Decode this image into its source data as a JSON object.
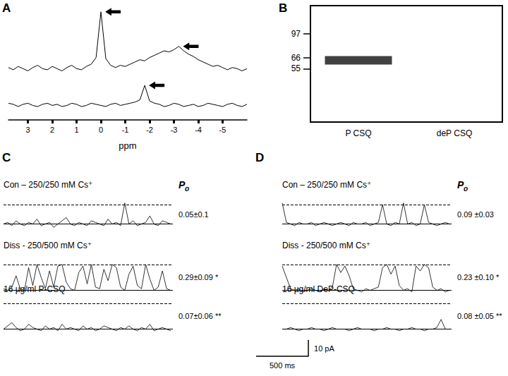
{
  "chart_data": [
    {
      "panel": "A",
      "type": "line",
      "x_label": "ppm",
      "x": [
        3.8,
        3.6,
        3.4,
        3.2,
        3.0,
        2.8,
        2.6,
        2.4,
        2.2,
        2.0,
        1.8,
        1.6,
        1.4,
        1.2,
        1.0,
        0.8,
        0.6,
        0.4,
        0.2,
        0.0,
        -0.2,
        -0.4,
        -0.6,
        -0.8,
        -1.0,
        -1.2,
        -1.4,
        -1.6,
        -1.8,
        -2.0,
        -2.2,
        -2.4,
        -2.6,
        -2.8,
        -3.0,
        -3.2,
        -3.4,
        -3.6,
        -3.8,
        -4.0,
        -4.2,
        -4.4,
        -4.6,
        -4.8,
        -5.0,
        -5.2,
        -5.4,
        -5.6,
        -5.8,
        -6.0
      ],
      "xlim": [
        3.8,
        -6.0
      ],
      "xticks": [
        3,
        2,
        1,
        0,
        -1,
        -2,
        -3,
        -4,
        -5
      ],
      "ylim": [
        0,
        100
      ],
      "tick_labels": "x",
      "series": [
        {
          "color": "#000000",
          "arrows": [
            0.0,
            -3.2
          ],
          "values": [
            47,
            45,
            48,
            46,
            44,
            47,
            49,
            46,
            45,
            48,
            46,
            44,
            47,
            49,
            46,
            45,
            48,
            50,
            56,
            97,
            55,
            49,
            47,
            49,
            48,
            50,
            52,
            54,
            53,
            56,
            58,
            60,
            62,
            61,
            63,
            66,
            62,
            59,
            57,
            54,
            52,
            50,
            48,
            49,
            47,
            45,
            47,
            46,
            44,
            46
          ]
        },
        {
          "color": "#000000",
          "arrows": [
            -1.8
          ],
          "values": [
            15,
            14,
            12,
            14,
            15,
            13,
            12,
            14,
            15,
            13,
            14,
            12,
            13,
            15,
            14,
            12,
            13,
            15,
            14,
            13,
            12,
            14,
            15,
            13,
            14,
            15,
            16,
            18,
            31,
            17,
            15,
            14,
            12,
            13,
            15,
            14,
            12,
            13,
            14,
            12,
            13,
            15,
            14,
            13,
            12,
            14,
            15,
            13,
            12,
            14
          ]
        }
      ]
    },
    {
      "panel": "B",
      "type": "blot",
      "categories": [
        "P CSQ",
        "deP CSQ"
      ],
      "log": "y",
      "ylim": [
        23,
        154
      ],
      "yticks": [
        97,
        66,
        55
      ],
      "series": [
        {
          "color": "#111111",
          "values": [
            63,
            null
          ]
        }
      ]
    },
    {
      "panel": "C",
      "type": "trace",
      "po_title": "Po",
      "tick_labels": false,
      "x": [
        0,
        40,
        80,
        120,
        160,
        200,
        240,
        280,
        320,
        360,
        400,
        440,
        480,
        520,
        560,
        600,
        640,
        680,
        720,
        760,
        800,
        840,
        880,
        920,
        960,
        1000,
        1040,
        1080,
        1120,
        1160,
        1200,
        1240,
        1280,
        1320,
        1360,
        1400,
        1440,
        1480,
        1520,
        1560,
        1600
      ],
      "xlim": [
        0,
        1620
      ],
      "ylim": [
        -5,
        19
      ],
      "series": [
        {
          "label": "Con – 250/250 mM Cs⁺",
          "po_label": "0.05±0.1",
          "color": "#000000",
          "open_level": 12,
          "closed_level": 0,
          "values": [
            0,
            1,
            -1,
            2,
            0,
            -1,
            1,
            0,
            3,
            -1,
            0,
            1,
            -2,
            0,
            2,
            4,
            0,
            -1,
            1,
            0,
            -1,
            2,
            1,
            0,
            -1,
            3,
            0,
            1,
            -1,
            13,
            0,
            2,
            -1,
            0,
            1,
            5,
            0,
            -1,
            2,
            1,
            0
          ]
        },
        {
          "label": "Diss - 250/500 mM Cs⁺",
          "po_label": "0.29±0.09 *",
          "color": "#000000",
          "open_level": 16,
          "closed_level": 0,
          "values": [
            1,
            0,
            2,
            9,
            1,
            0,
            14,
            3,
            16,
            8,
            1,
            12,
            2,
            15,
            16,
            5,
            1,
            0,
            11,
            15,
            4,
            16,
            2,
            1,
            13,
            6,
            16,
            14,
            2,
            0,
            10,
            15,
            3,
            1,
            16,
            7,
            0,
            2,
            12,
            1,
            0
          ]
        },
        {
          "label": "16 µg/ml P-CSQ",
          "po_label": "0.07±0.06 **",
          "color": "#000000",
          "open_level": 16,
          "closed_level": 0,
          "values": [
            0,
            2,
            4,
            1,
            -1,
            0,
            3,
            1,
            0,
            -1,
            2,
            0,
            1,
            -1,
            3,
            0,
            1,
            0,
            -1,
            2,
            0,
            1,
            -1,
            0,
            2,
            1,
            0,
            -1,
            1,
            0,
            2,
            0,
            -1,
            1,
            0,
            3,
            -1,
            0,
            1,
            0,
            -1
          ]
        }
      ]
    },
    {
      "panel": "D",
      "type": "trace",
      "po_title": "Po",
      "tick_labels": false,
      "x": [
        0,
        40,
        80,
        120,
        160,
        200,
        240,
        280,
        320,
        360,
        400,
        440,
        480,
        520,
        560,
        600,
        640,
        680,
        720,
        760,
        800,
        840,
        880,
        920,
        960,
        1000,
        1040,
        1080,
        1120,
        1160,
        1200,
        1240,
        1280,
        1320,
        1360,
        1400,
        1440,
        1480,
        1520,
        1560,
        1600
      ],
      "xlim": [
        0,
        1620
      ],
      "ylim": [
        -5,
        19
      ],
      "series": [
        {
          "label": "Con – 250/250 mM Cs⁺",
          "po_label": "0.09 ±0.03",
          "color": "#000000",
          "open_level": 12,
          "closed_level": 0,
          "values": [
            13,
            1,
            0,
            -1,
            1,
            0,
            0,
            1,
            -1,
            0,
            1,
            0,
            -1,
            0,
            1,
            0,
            -1,
            1,
            0,
            0,
            1,
            -1,
            0,
            1,
            12,
            0,
            -1,
            1,
            0,
            13,
            0,
            1,
            -1,
            0,
            12,
            1,
            0,
            -1,
            0,
            1,
            0
          ]
        },
        {
          "label": "Diss - 250/500 mM Cs⁺",
          "po_label": "0.23 ±0.10 *",
          "color": "#000000",
          "open_level": 16,
          "closed_level": 0,
          "values": [
            15,
            8,
            1,
            0,
            1,
            -1,
            0,
            1,
            0,
            -1,
            1,
            0,
            2,
            16,
            11,
            15,
            9,
            1,
            0,
            -1,
            1,
            0,
            1,
            2,
            14,
            16,
            10,
            15,
            3,
            0,
            1,
            -1,
            15,
            12,
            16,
            14,
            2,
            0,
            1,
            -1,
            0
          ]
        },
        {
          "label": "16 µg/ml DeP-CSQ",
          "po_label": "0.08 ±0.05 **",
          "color": "#000000",
          "open_level": 16,
          "closed_level": 0,
          "values": [
            0,
            0,
            1,
            0,
            -1,
            0,
            0,
            1,
            0,
            0,
            -1,
            0,
            1,
            0,
            0,
            0,
            -1,
            0,
            1,
            0,
            0,
            0,
            -1,
            0,
            0,
            1,
            0,
            0,
            -1,
            0,
            0,
            1,
            0,
            0,
            -1,
            0,
            0,
            1,
            6,
            0,
            0
          ]
        }
      ]
    }
  ],
  "scale_bar": {
    "x": 500,
    "x_label": "500 ms",
    "y": 10,
    "y_label": "10 pA"
  }
}
